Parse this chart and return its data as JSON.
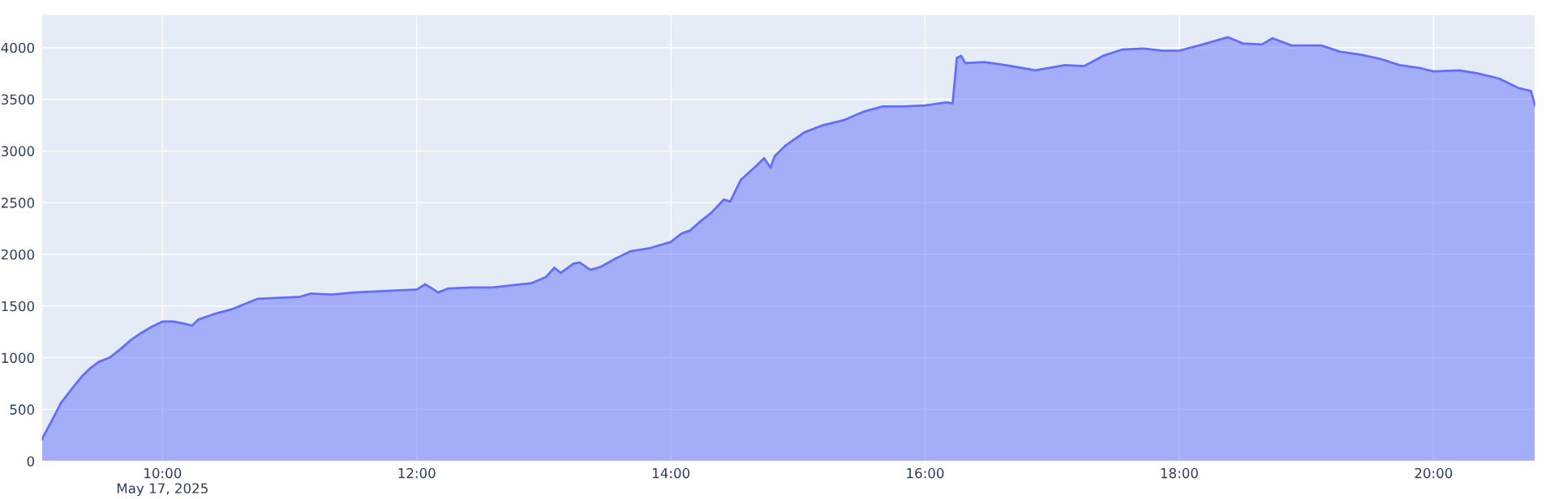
{
  "chart_data": {
    "type": "area",
    "grid": true,
    "marker": "none",
    "line_style": "solid",
    "x": [
      "2025-05-17T09:03",
      "2025-05-17T09:08",
      "2025-05-17T09:12",
      "2025-05-17T09:15",
      "2025-05-17T09:18",
      "2025-05-17T09:22",
      "2025-05-17T09:26",
      "2025-05-17T09:30",
      "2025-05-17T09:35",
      "2025-05-17T09:40",
      "2025-05-17T09:45",
      "2025-05-17T09:50",
      "2025-05-17T09:55",
      "2025-05-17T10:00",
      "2025-05-17T10:05",
      "2025-05-17T10:10",
      "2025-05-17T10:14",
      "2025-05-17T10:17",
      "2025-05-17T10:24",
      "2025-05-17T10:33",
      "2025-05-17T10:40",
      "2025-05-17T10:45",
      "2025-05-17T10:55",
      "2025-05-17T11:05",
      "2025-05-17T11:10",
      "2025-05-17T11:20",
      "2025-05-17T11:30",
      "2025-05-17T11:40",
      "2025-05-17T11:50",
      "2025-05-17T12:00",
      "2025-05-17T12:04",
      "2025-05-17T12:08",
      "2025-05-17T12:10",
      "2025-05-17T12:15",
      "2025-05-17T12:26",
      "2025-05-17T12:36",
      "2025-05-17T12:45",
      "2025-05-17T12:54",
      "2025-05-17T13:01",
      "2025-05-17T13:05",
      "2025-05-17T13:08",
      "2025-05-17T13:14",
      "2025-05-17T13:17",
      "2025-05-17T13:22",
      "2025-05-17T13:27",
      "2025-05-17T13:34",
      "2025-05-17T13:41",
      "2025-05-17T13:50",
      "2025-05-17T14:00",
      "2025-05-17T14:05",
      "2025-05-17T14:09",
      "2025-05-17T14:14",
      "2025-05-17T14:19",
      "2025-05-17T14:25",
      "2025-05-17T14:28",
      "2025-05-17T14:33",
      "2025-05-17T14:40",
      "2025-05-17T14:44",
      "2025-05-17T14:47",
      "2025-05-17T14:49",
      "2025-05-17T14:54",
      "2025-05-17T15:03",
      "2025-05-17T15:12",
      "2025-05-17T15:22",
      "2025-05-17T15:31",
      "2025-05-17T15:40",
      "2025-05-17T15:50",
      "2025-05-17T16:00",
      "2025-05-17T16:10",
      "2025-05-17T16:13",
      "2025-05-17T16:15",
      "2025-05-17T16:17",
      "2025-05-17T16:19",
      "2025-05-17T16:28",
      "2025-05-17T16:38",
      "2025-05-17T16:52",
      "2025-05-17T17:06",
      "2025-05-17T17:15",
      "2025-05-17T17:24",
      "2025-05-17T17:33",
      "2025-05-17T17:43",
      "2025-05-17T17:52",
      "2025-05-17T18:00",
      "2025-05-17T18:11",
      "2025-05-17T18:23",
      "2025-05-17T18:30",
      "2025-05-17T18:39",
      "2025-05-17T18:44",
      "2025-05-17T18:53",
      "2025-05-17T19:07",
      "2025-05-17T19:16",
      "2025-05-17T19:26",
      "2025-05-17T19:35",
      "2025-05-17T19:44",
      "2025-05-17T19:54",
      "2025-05-17T20:00",
      "2025-05-17T20:12",
      "2025-05-17T20:21",
      "2025-05-17T20:31",
      "2025-05-17T20:40",
      "2025-05-17T20:46",
      "2025-05-17T20:48"
    ],
    "series": [
      {
        "color": "#636efa",
        "values": [
          210,
          400,
          560,
          640,
          720,
          820,
          900,
          960,
          1000,
          1080,
          1170,
          1240,
          1300,
          1350,
          1350,
          1330,
          1310,
          1370,
          1420,
          1470,
          1530,
          1570,
          1580,
          1590,
          1620,
          1610,
          1630,
          1640,
          1650,
          1660,
          1710,
          1660,
          1630,
          1670,
          1680,
          1680,
          1700,
          1720,
          1780,
          1870,
          1820,
          1910,
          1920,
          1850,
          1880,
          1960,
          2030,
          2060,
          2120,
          2200,
          2230,
          2320,
          2400,
          2530,
          2510,
          2720,
          2850,
          2930,
          2840,
          2950,
          3050,
          3180,
          3250,
          3300,
          3380,
          3430,
          3430,
          3440,
          3470,
          3460,
          3900,
          3920,
          3850,
          3860,
          3830,
          3780,
          3830,
          3820,
          3920,
          3980,
          3990,
          3970,
          3970,
          4030,
          4100,
          4040,
          4030,
          4090,
          4020,
          4020,
          3960,
          3930,
          3890,
          3830,
          3800,
          3770,
          3780,
          3750,
          3700,
          3610,
          3580,
          3440
        ]
      }
    ],
    "xlim": [
      "2025-05-17T09:03",
      "2025-05-17T20:48"
    ],
    "xticks": [
      {
        "value": "2025-05-17T10:00",
        "label": "10:00\nMay 17, 2025"
      },
      {
        "value": "2025-05-17T12:00",
        "label": "12:00"
      },
      {
        "value": "2025-05-17T14:00",
        "label": "14:00"
      },
      {
        "value": "2025-05-17T16:00",
        "label": "16:00"
      },
      {
        "value": "2025-05-17T18:00",
        "label": "18:00"
      },
      {
        "value": "2025-05-17T20:00",
        "label": "20:00"
      }
    ],
    "ylim": [
      0,
      4320
    ],
    "yticks": [
      0,
      500,
      1000,
      1500,
      2000,
      2500,
      3000,
      3500,
      4000
    ]
  }
}
